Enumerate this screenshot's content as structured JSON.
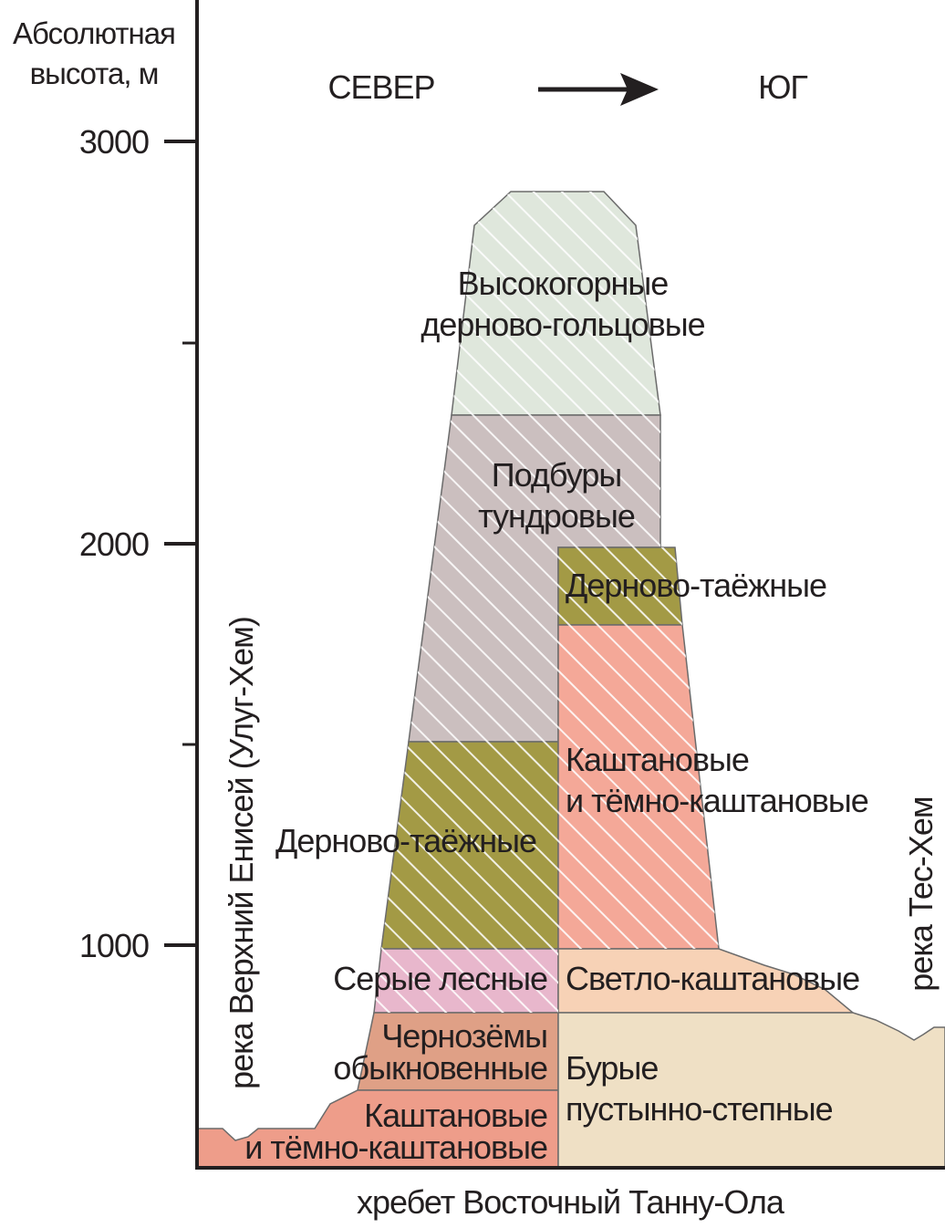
{
  "axis": {
    "title_line1": "Абсолютная",
    "title_line2": "высота, м",
    "ticks": [
      "3000",
      "2000",
      "1000"
    ]
  },
  "directions": {
    "north": "СЕВЕР",
    "south": "ЮГ"
  },
  "ridge_label": "хребет Восточный Танну-Ола",
  "rivers": {
    "left": "река Верхний Енисей (Улуг-Хем)",
    "right": "река Тес-Хем"
  },
  "north_slope": [
    {
      "id": "highland",
      "line1": "Высокогорные",
      "line2": "дерново-гольцовые",
      "color": "#dfe7dc"
    },
    {
      "id": "podbury",
      "line1": "Подбуры",
      "line2": "тундровые",
      "color": "#cbbfbf"
    },
    {
      "id": "dernovo-north",
      "line1": "Дерново-таёжные",
      "color": "#a39a45"
    },
    {
      "id": "grey-forest",
      "line1": "Серые лесные",
      "color": "#e8b7cc"
    },
    {
      "id": "chernozem",
      "line1": "Чернозёмы",
      "line2": "обыкновенные",
      "color": "#dfa086"
    },
    {
      "id": "kashtan-north",
      "line1": "Каштановые",
      "line2": "и тёмно-каштановые",
      "color": "#ee9d8a"
    }
  ],
  "south_slope": [
    {
      "id": "dernovo-south",
      "line1": "Дерново-таёжные",
      "color": "#a39a45"
    },
    {
      "id": "kashtan-south",
      "line1": "Каштановые",
      "line2": "и тёмно-каштановые",
      "color": "#f4a898"
    },
    {
      "id": "light-kashtan",
      "line1": "Светло-каштановые",
      "color": "#f7d2b6"
    },
    {
      "id": "brown-desert",
      "line1": "Бурые",
      "line2": "пустынно-степные",
      "color": "#efe0c5"
    }
  ]
}
